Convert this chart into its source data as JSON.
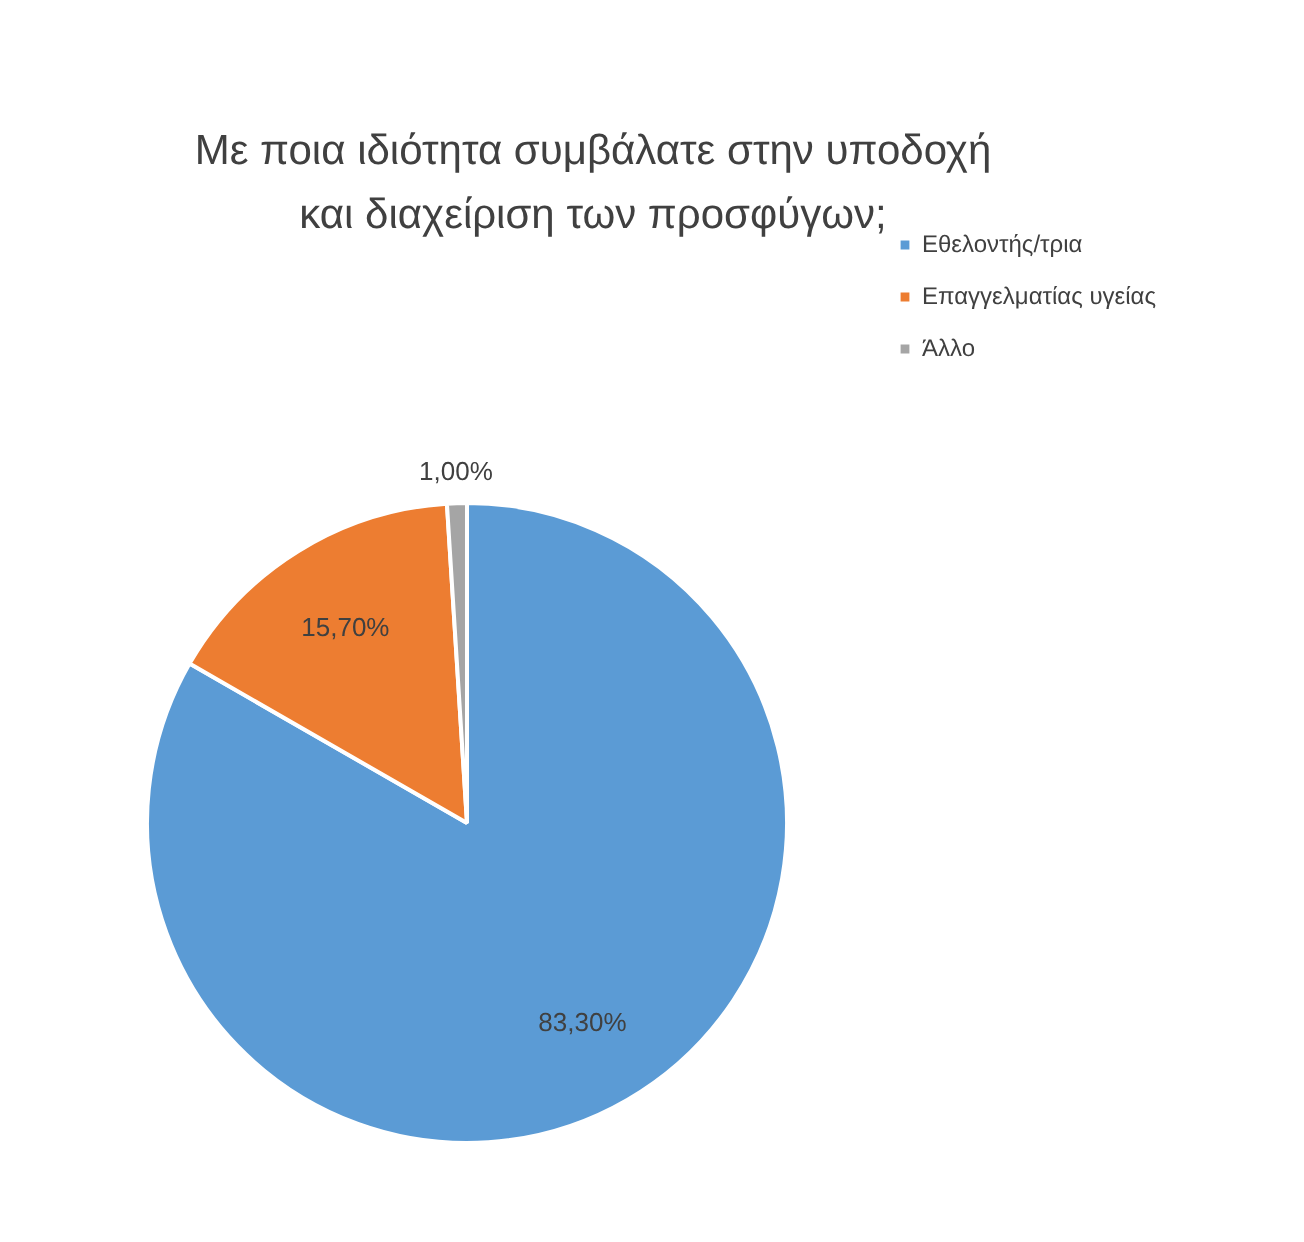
{
  "chart_data": {
    "type": "pie",
    "title": "Με ποια ιδιότητα συμβάλατε στην υποδοχή\nκαι διαχείριση των προσφύγων;",
    "categories": [
      "Εθελοντής/τρια",
      "Επαγγελματίας υγείας",
      "Άλλο"
    ],
    "values": [
      83.3,
      15.7,
      1.0
    ],
    "colors": [
      "#5b9bd5",
      "#ed7d31",
      "#a5a5a5"
    ],
    "value_labels": [
      "83,30%",
      "15,70%",
      "1,00%"
    ],
    "legend": "top right"
  }
}
